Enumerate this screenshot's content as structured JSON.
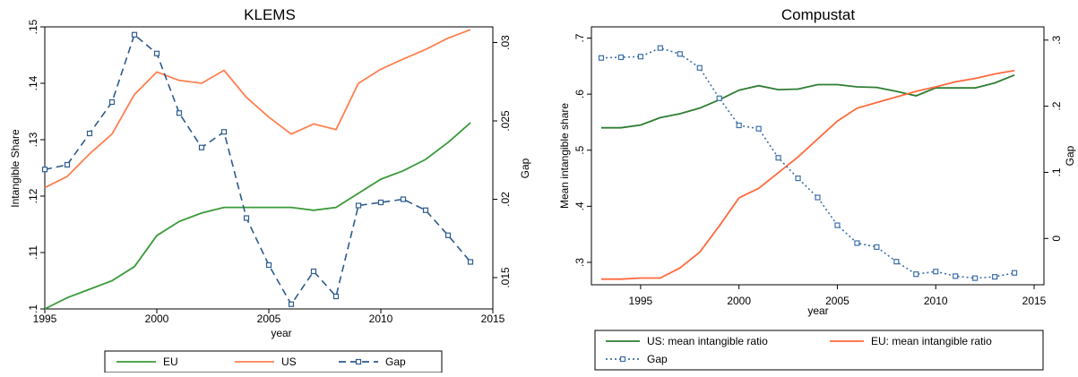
{
  "chart_data": [
    {
      "type": "line",
      "title": "KLEMS",
      "xlabel": "year",
      "ylabel": "Intangible Share",
      "y2label": "Gap",
      "xlim": [
        1995,
        2015
      ],
      "ylim": [
        0.1,
        0.15
      ],
      "y2lim": [
        0.013,
        0.031
      ],
      "x_ticks": [
        1995,
        2000,
        2005,
        2010,
        2015
      ],
      "y_ticks": [
        0.1,
        0.11,
        0.12,
        0.13,
        0.14,
        0.15
      ],
      "y_tick_labels": [
        ".1",
        ".11",
        ".12",
        ".13",
        ".14",
        ".15"
      ],
      "y2_ticks": [
        0.015,
        0.02,
        0.025,
        0.03
      ],
      "y2_tick_labels": [
        ".015",
        ".02",
        ".025",
        ".03"
      ],
      "grid": false,
      "legend_position": "bottom",
      "x": [
        1995,
        1996,
        1997,
        1998,
        1999,
        2000,
        2001,
        2002,
        2003,
        2004,
        2005,
        2006,
        2007,
        2008,
        2009,
        2010,
        2011,
        2012,
        2013,
        2014
      ],
      "series": [
        {
          "name": "EU",
          "axis": "left",
          "color": "#3a9a3a",
          "style": "solid",
          "values": [
            0.1,
            0.102,
            0.1035,
            0.105,
            0.1075,
            0.113,
            0.1155,
            0.117,
            0.118,
            0.118,
            0.118,
            0.118,
            0.1175,
            0.118,
            0.1205,
            0.123,
            0.1245,
            0.1265,
            0.1295,
            0.133
          ]
        },
        {
          "name": "US",
          "axis": "left",
          "color": "#ff7f50",
          "style": "solid",
          "values": [
            0.1215,
            0.1235,
            0.1275,
            0.131,
            0.138,
            0.142,
            0.1405,
            0.14,
            0.1423,
            0.1375,
            0.134,
            0.131,
            0.1328,
            0.1318,
            0.14,
            0.1425,
            0.1443,
            0.146,
            0.148,
            0.1495
          ]
        },
        {
          "name": "Gap",
          "axis": "right",
          "color": "#2d5b8e",
          "style": "dashed",
          "marker": "square",
          "values": [
            0.0219,
            0.0222,
            0.0242,
            0.0262,
            0.0305,
            0.0293,
            0.0255,
            0.0233,
            0.0243,
            0.0188,
            0.0158,
            0.0133,
            0.0154,
            0.0138,
            0.0196,
            0.0198,
            0.02,
            0.0193,
            0.0177,
            0.016
          ]
        }
      ]
    },
    {
      "type": "line",
      "title": "Compustat",
      "xlabel": "year",
      "ylabel": "Mean intangible share",
      "y2label": "Gap",
      "xlim": [
        1992.5,
        2015.5
      ],
      "ylim": [
        0.26,
        0.72
      ],
      "y2lim": [
        -0.07,
        0.32
      ],
      "x_ticks": [
        1995,
        2000,
        2005,
        2010,
        2015
      ],
      "y_ticks": [
        0.3,
        0.4,
        0.5,
        0.6,
        0.7
      ],
      "y_tick_labels": [
        ".3",
        ".4",
        ".5",
        ".6",
        ".7"
      ],
      "y2_ticks": [
        0,
        0.1,
        0.2,
        0.3
      ],
      "y2_tick_labels": [
        "0",
        ".1",
        ".2",
        ".3"
      ],
      "grid": false,
      "legend_position": "bottom",
      "x": [
        1993,
        1994,
        1995,
        1996,
        1997,
        1998,
        1999,
        2000,
        2001,
        2002,
        2003,
        2004,
        2005,
        2006,
        2007,
        2008,
        2009,
        2010,
        2011,
        2012,
        2013,
        2014
      ],
      "series": [
        {
          "name": "US: mean intangible ratio",
          "axis": "left",
          "color": "#2e7d32",
          "style": "solid",
          "values": [
            0.54,
            0.54,
            0.545,
            0.558,
            0.565,
            0.575,
            0.59,
            0.607,
            0.615,
            0.608,
            0.609,
            0.617,
            0.617,
            0.613,
            0.612,
            0.605,
            0.597,
            0.611,
            0.611,
            0.611,
            0.62,
            0.634
          ]
        },
        {
          "name": "EU: mean intangible ratio",
          "axis": "left",
          "color": "#ff6a3d",
          "style": "solid",
          "values": [
            0.27,
            0.27,
            0.272,
            0.272,
            0.29,
            0.318,
            0.365,
            0.415,
            0.432,
            0.46,
            0.488,
            0.52,
            0.552,
            0.575,
            0.585,
            0.595,
            0.605,
            0.613,
            0.622,
            0.628,
            0.636,
            0.642
          ]
        },
        {
          "name": "Gap",
          "axis": "right",
          "color": "#3c6fa8",
          "style": "dotted",
          "marker": "square",
          "values": [
            0.273,
            0.274,
            0.275,
            0.288,
            0.279,
            0.258,
            0.212,
            0.171,
            0.166,
            0.122,
            0.091,
            0.062,
            0.02,
            -0.007,
            -0.013,
            -0.035,
            -0.054,
            -0.05,
            -0.057,
            -0.06,
            -0.058,
            -0.052
          ]
        }
      ]
    }
  ]
}
